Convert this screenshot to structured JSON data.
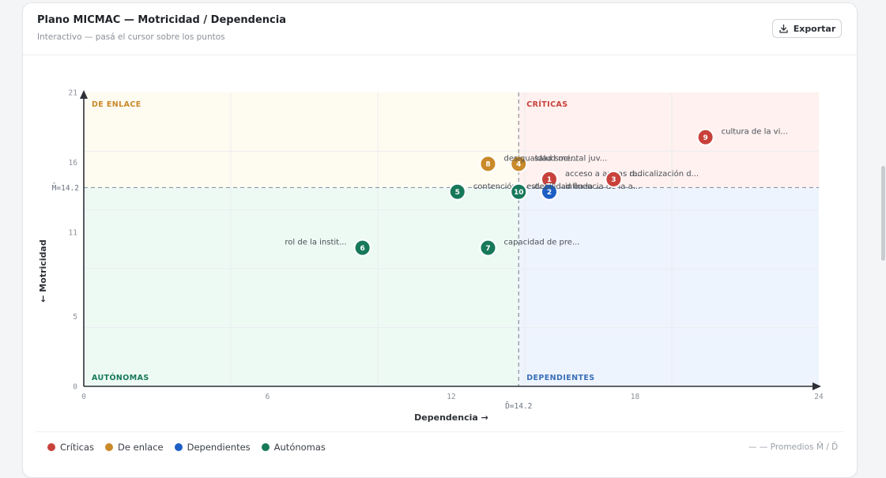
{
  "header": {
    "title": "Plano MICMAC — Motricidad / Dependencia",
    "subtitle": "Interactivo — pasá el cursor sobre los puntos",
    "export_label": "Exportar",
    "export_icon": "download-icon"
  },
  "legend": {
    "items": [
      {
        "label": "Críticas",
        "color": "#c8413b"
      },
      {
        "label": "De enlace",
        "color": "#c98a2a"
      },
      {
        "label": "Dependientes",
        "color": "#1d5fc4"
      },
      {
        "label": "Autónomas",
        "color": "#17795a"
      }
    ],
    "averages_note": "— — Promedios M̄ / D̄"
  },
  "chart_data": {
    "type": "scatter",
    "xlabel": "Dependencia →",
    "ylabel": "← Motricidad",
    "xlim": [
      0,
      24
    ],
    "ylim": [
      0,
      21
    ],
    "xticks": [
      0,
      6,
      12,
      18,
      24
    ],
    "yticks": [
      0,
      5,
      11,
      16,
      21
    ],
    "grid": true,
    "avg_x": 14.2,
    "avg_y": 14.2,
    "avg_x_label": "D̄=14.2",
    "avg_y_label": "M̄=14.2",
    "quadrants": {
      "top_left": {
        "label": "DE ENLACE",
        "color": "#c98a2a",
        "fill": "#fefbf1"
      },
      "top_right": {
        "label": "CRÍTICAS",
        "color": "#c8413b",
        "fill": "#fff1ef"
      },
      "bottom_left": {
        "label": "AUTÓNOMAS",
        "color": "#17795a",
        "fill": "#edfaf4"
      },
      "bottom_right": {
        "label": "DEPENDIENTES",
        "color": "#3a6fb8",
        "fill": "#eef4fe"
      }
    },
    "points": [
      {
        "id": "1",
        "label": "acceso a armas d...",
        "x": 15.2,
        "y": 14.8,
        "category": "Críticas",
        "color": "#c8413b",
        "label_pos": "right"
      },
      {
        "id": "2",
        "label": "influencia de la a...",
        "x": 15.2,
        "y": 13.9,
        "category": "Dependientes",
        "color": "#1d5fc4",
        "label_pos": "right"
      },
      {
        "id": "3",
        "label": "radicalización d...",
        "x": 17.3,
        "y": 14.8,
        "category": "Críticas",
        "color": "#c8413b",
        "label_pos": "right"
      },
      {
        "id": "4",
        "label": "salud mental juv...",
        "x": 14.2,
        "y": 15.9,
        "category": "De enlace",
        "color": "#c98a2a",
        "label_pos": "right"
      },
      {
        "id": "5",
        "label": "contención y est...",
        "x": 12.2,
        "y": 13.9,
        "category": "Autónomas",
        "color": "#17795a",
        "label_pos": "right"
      },
      {
        "id": "6",
        "label": "rol de la instit...",
        "x": 9.1,
        "y": 9.9,
        "category": "Autónomas",
        "color": "#17795a",
        "label_pos": "left"
      },
      {
        "id": "7",
        "label": "capacidad de pre...",
        "x": 13.2,
        "y": 9.9,
        "category": "Autónomas",
        "color": "#17795a",
        "label_pos": "right"
      },
      {
        "id": "8",
        "label": "desigualdad soci...",
        "x": 13.2,
        "y": 15.9,
        "category": "De enlace",
        "color": "#c98a2a",
        "label_pos": "right"
      },
      {
        "id": "9",
        "label": "cultura de la vi...",
        "x": 20.3,
        "y": 17.8,
        "category": "Críticas",
        "color": "#c8413b",
        "label_pos": "right"
      },
      {
        "id": "10",
        "label": "debilidad en la ...",
        "x": 14.2,
        "y": 13.9,
        "category": "Autónomas",
        "color": "#17795a",
        "label_pos": "right"
      }
    ]
  }
}
